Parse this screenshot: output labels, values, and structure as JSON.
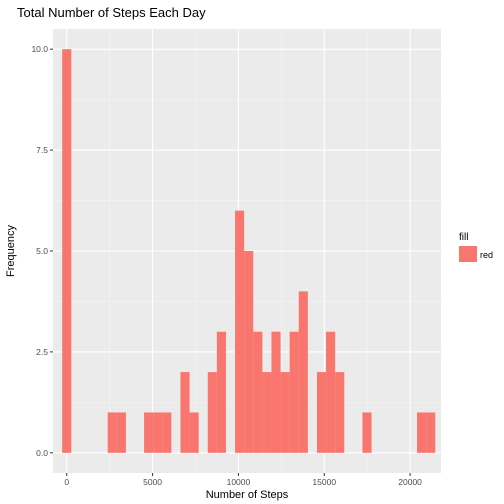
{
  "chart_data": {
    "type": "bar",
    "title": "Total Number of Steps Each Day",
    "xlabel": "Number of Steps",
    "ylabel": "Frequency",
    "xlim": [
      -800,
      21800
    ],
    "ylim": [
      -0.5,
      10.5
    ],
    "x_ticks": [
      0,
      5000,
      10000,
      15000,
      20000
    ],
    "x_tick_labels": [
      "0",
      "5000",
      "10000",
      "15000",
      "20000"
    ],
    "y_ticks": [
      0,
      2.5,
      5,
      7.5,
      10
    ],
    "y_tick_labels": [
      "0.0",
      "2.5",
      "5.0",
      "7.5",
      "10.0"
    ],
    "bin_width": 530,
    "bins": [
      {
        "x": 0,
        "count": 10
      },
      {
        "x": 2650,
        "count": 1
      },
      {
        "x": 3180,
        "count": 1
      },
      {
        "x": 4770,
        "count": 1
      },
      {
        "x": 5300,
        "count": 1
      },
      {
        "x": 5830,
        "count": 1
      },
      {
        "x": 6890,
        "count": 2
      },
      {
        "x": 7420,
        "count": 1
      },
      {
        "x": 8480,
        "count": 2
      },
      {
        "x": 9010,
        "count": 3
      },
      {
        "x": 10070,
        "count": 6
      },
      {
        "x": 10600,
        "count": 5
      },
      {
        "x": 11130,
        "count": 3
      },
      {
        "x": 11660,
        "count": 2
      },
      {
        "x": 12190,
        "count": 3
      },
      {
        "x": 12720,
        "count": 2
      },
      {
        "x": 13250,
        "count": 3
      },
      {
        "x": 13780,
        "count": 4
      },
      {
        "x": 14840,
        "count": 2
      },
      {
        "x": 15370,
        "count": 3
      },
      {
        "x": 15900,
        "count": 2
      },
      {
        "x": 17490,
        "count": 1
      },
      {
        "x": 20670,
        "count": 1
      },
      {
        "x": 21200,
        "count": 1
      }
    ],
    "grid": true,
    "legend": {
      "position": "right",
      "title": "fill",
      "entries": [
        "red"
      ]
    },
    "colors": {
      "bar": "#F8766D",
      "panel": "#EBEBEB",
      "grid_major": "#FFFFFF",
      "grid_minor": "#F5F5F5"
    }
  }
}
